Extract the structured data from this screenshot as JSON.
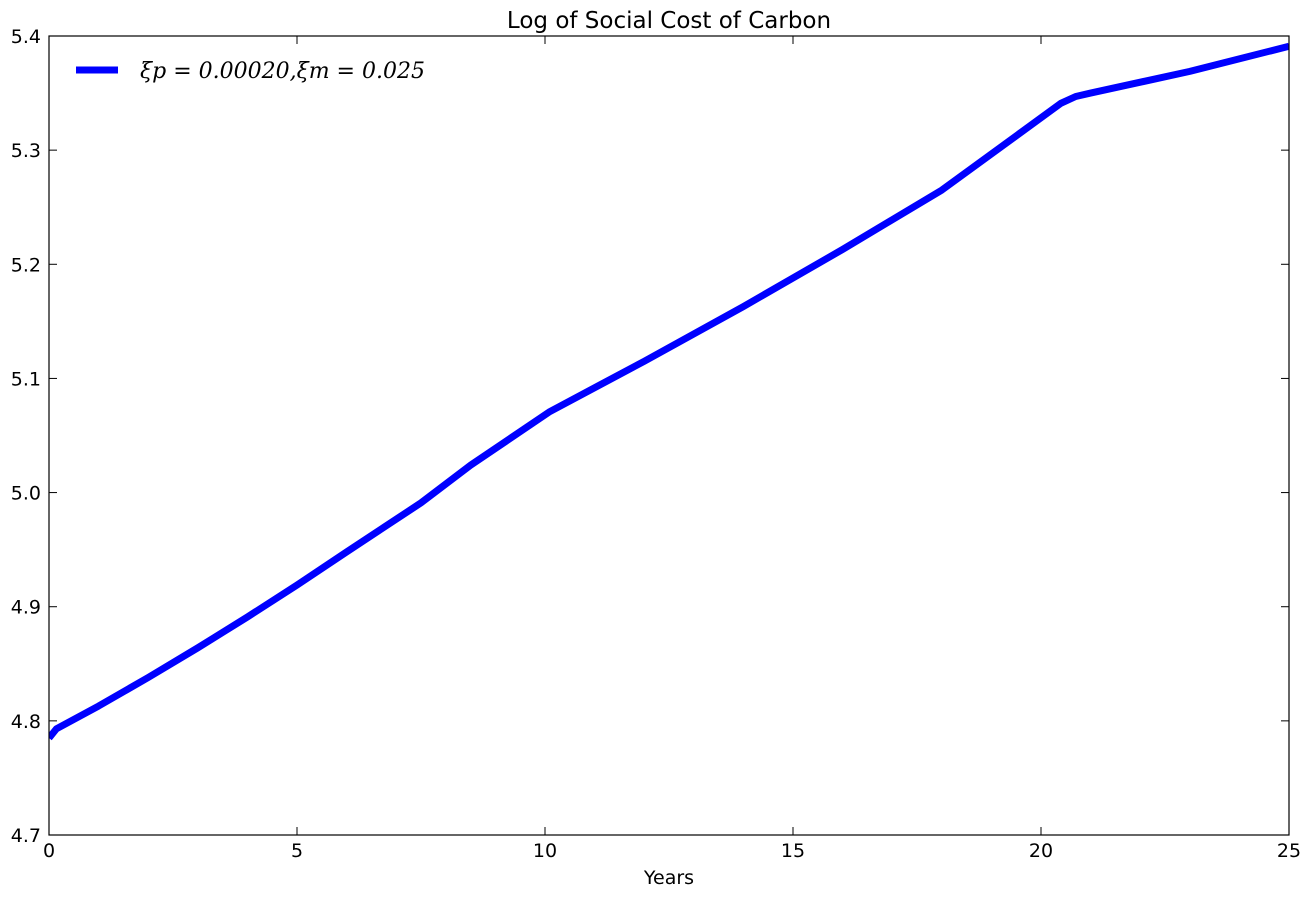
{
  "chart_data": {
    "type": "line",
    "title": "Log of Social Cost of Carbon",
    "xlabel": "Years",
    "ylabel": "",
    "xlim": [
      0,
      25
    ],
    "ylim": [
      4.7,
      5.4
    ],
    "xticks": [
      0,
      5,
      10,
      15,
      20,
      25
    ],
    "yticks": [
      4.7,
      4.8,
      4.9,
      5.0,
      5.1,
      5.2,
      5.3,
      5.4
    ],
    "xtick_labels": [
      "0",
      "5",
      "10",
      "15",
      "20",
      "25"
    ],
    "ytick_labels": [
      "4.7",
      "4.8",
      "4.9",
      "5.0",
      "5.1",
      "5.2",
      "5.3",
      "5.4"
    ],
    "grid": false,
    "legend_position": "top-left",
    "series": [
      {
        "name": "ξp = 0.00020,ξm = 0.025",
        "color": "#0000ff",
        "x": [
          0,
          0.15,
          1,
          2,
          3,
          4,
          5,
          6,
          7.5,
          8.5,
          10.1,
          12,
          14,
          16,
          18,
          20.4,
          20.7,
          21,
          23,
          25
        ],
        "y": [
          4.785,
          4.793,
          4.813,
          4.838,
          4.864,
          4.891,
          4.919,
          4.948,
          4.991,
          5.024,
          5.071,
          5.115,
          5.163,
          5.213,
          5.265,
          5.341,
          5.347,
          5.35,
          5.369,
          5.391
        ]
      }
    ]
  }
}
